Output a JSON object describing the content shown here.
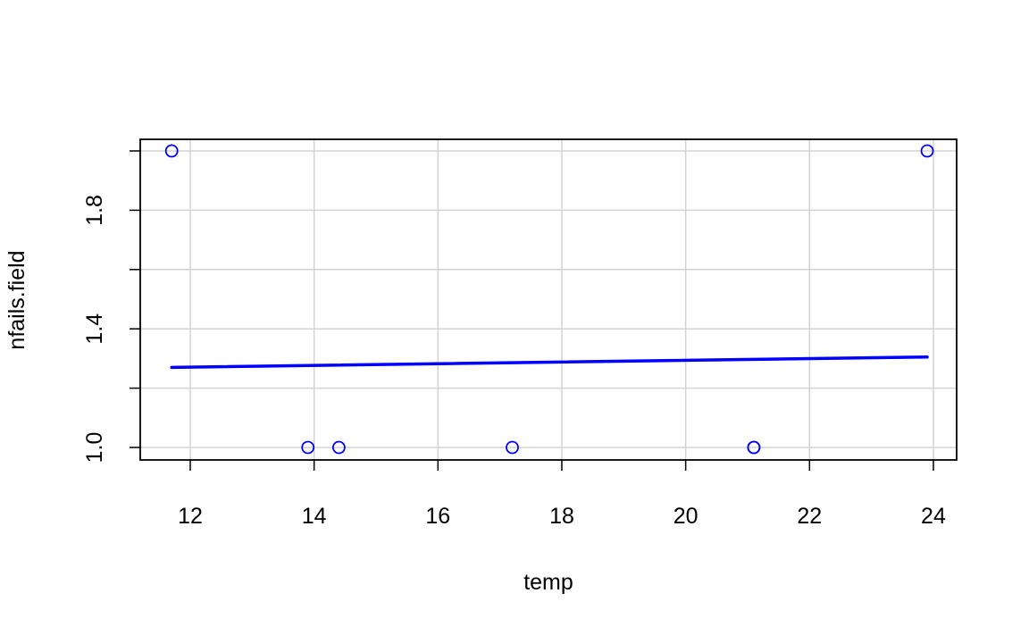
{
  "chart_data": {
    "type": "scatter",
    "xlabel": "temp",
    "ylabel": "nfails.field",
    "xlim": [
      11.3,
      24.1
    ],
    "ylim": [
      0.96,
      2.04
    ],
    "x_ticks": [
      12,
      14,
      16,
      18,
      20,
      22,
      24
    ],
    "x_tick_labels": [
      "12",
      "14",
      "16",
      "18",
      "20",
      "22",
      "24"
    ],
    "y_ticks": [
      1.0,
      1.2,
      1.4,
      1.6,
      1.8,
      2.0
    ],
    "y_tick_labels": [
      "1.0",
      "",
      "1.4",
      "",
      "1.8",
      ""
    ],
    "grid": true,
    "points": [
      {
        "x": 11.7,
        "y": 2.0
      },
      {
        "x": 13.9,
        "y": 1.0
      },
      {
        "x": 14.4,
        "y": 1.0
      },
      {
        "x": 17.2,
        "y": 1.0
      },
      {
        "x": 21.1,
        "y": 1.0
      },
      {
        "x": 21.1,
        "y": 1.0
      },
      {
        "x": 23.9,
        "y": 2.0
      }
    ],
    "fit_line": {
      "x": [
        11.7,
        23.9
      ],
      "y": [
        1.27,
        1.305
      ]
    },
    "colors": {
      "points": "#0000ff",
      "fit_line": "#0000ff",
      "grid": "#d3d3d3",
      "axis": "#000000"
    }
  }
}
